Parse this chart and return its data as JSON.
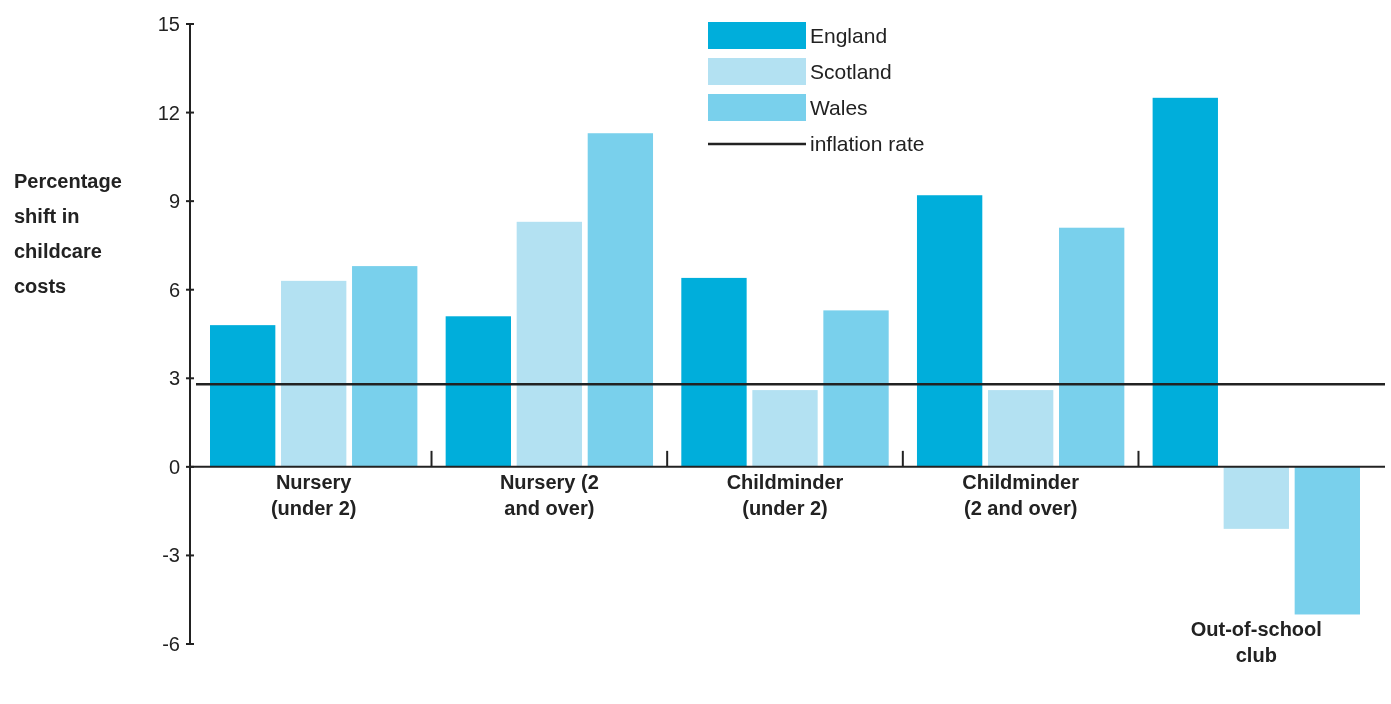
{
  "chart_data": {
    "type": "bar",
    "ylabel": "Percentage shift in childcare costs",
    "categories": [
      "Nursery (under 2)",
      "Nursery (2 and over)",
      "Childminder (under 2)",
      "Childminder (2 and over)",
      "Out-of-school club"
    ],
    "series": [
      {
        "name": "England",
        "color": "#00aedb",
        "values": [
          4.8,
          5.1,
          6.4,
          9.2,
          12.5
        ]
      },
      {
        "name": "Scotland",
        "color": "#b3e1f2",
        "values": [
          6.3,
          8.3,
          2.6,
          2.6,
          -2.1
        ]
      },
      {
        "name": "Wales",
        "color": "#79d0ec",
        "values": [
          6.8,
          11.3,
          5.3,
          8.1,
          -5.0
        ]
      }
    ],
    "ylim": [
      -6,
      15
    ],
    "yticks": [
      -6,
      -3,
      0,
      3,
      6,
      9,
      12,
      15
    ],
    "grid": false,
    "legend": "top right",
    "ref_lines": [
      {
        "axis": "y",
        "value": 2.8,
        "label": "inflation rate",
        "color": "#222222"
      }
    ]
  }
}
